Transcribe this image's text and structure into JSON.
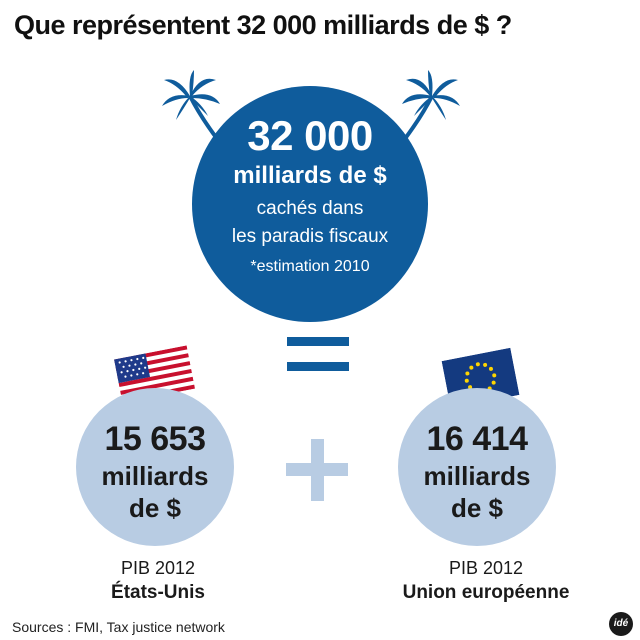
{
  "title": "Que représentent 32 000 milliards de $ ?",
  "main": {
    "amount": "32 000",
    "unit": "milliards de $",
    "desc_line1": "cachés dans",
    "desc_line2": "les paradis fiscaux",
    "note": "*estimation 2010"
  },
  "usa": {
    "value": "15 653",
    "unit_line1": "milliards",
    "unit_line2": "de $",
    "year_label": "PIB 2012",
    "country": "États-Unis"
  },
  "eu": {
    "value": "16 414",
    "unit_line1": "milliards",
    "unit_line2": "de $",
    "year_label": "PIB 2012",
    "country": "Union européenne"
  },
  "sources": "Sources : FMI, Tax justice network",
  "logo_text": "idé",
  "colors": {
    "dark_blue": "#0f5c9c",
    "light_blue": "#b8cce3"
  },
  "icons": [
    "palm-tree-icon",
    "us-flag-icon",
    "eu-flag-icon",
    "equals-icon",
    "plus-icon"
  ]
}
